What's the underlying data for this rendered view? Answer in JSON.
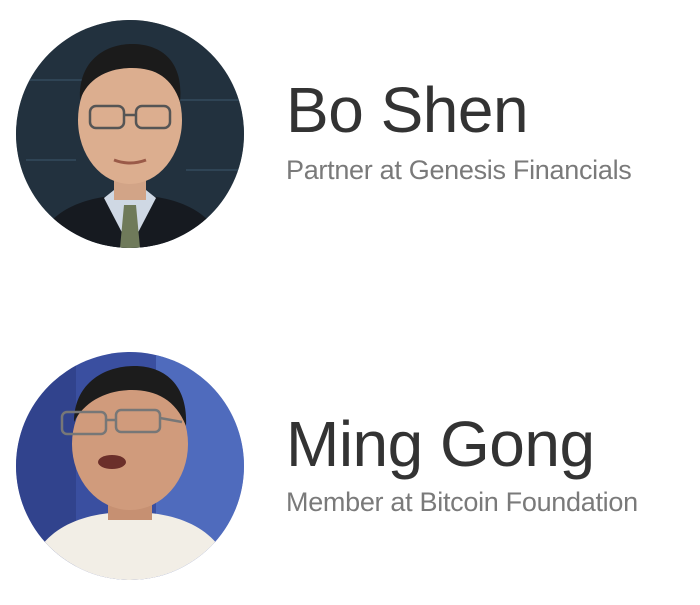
{
  "people": [
    {
      "name": "Bo Shen",
      "title": "Partner at Genesis Financials",
      "photo_icon": "portrait-photo"
    },
    {
      "name": "Ming Gong",
      "title": "Member at Bitcoin Foundation",
      "photo_icon": "portrait-photo"
    }
  ]
}
